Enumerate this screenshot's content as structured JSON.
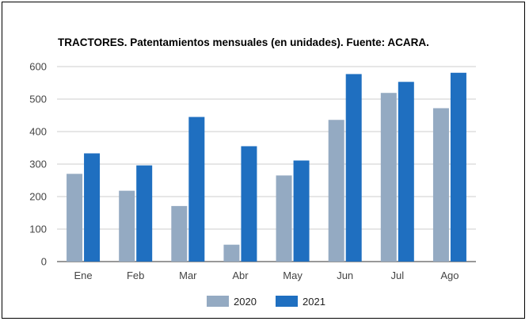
{
  "chart_data": {
    "type": "bar",
    "title": "TRACTORES. Patentamientos mensuales (en unidades). Fuente: ACARA.",
    "categories": [
      "Ene",
      "Feb",
      "Mar",
      "Abr",
      "May",
      "Jun",
      "Jul",
      "Ago"
    ],
    "series": [
      {
        "name": "2020",
        "color": "#94aac2",
        "values": [
          270,
          218,
          171,
          52,
          265,
          436,
          519,
          472
        ]
      },
      {
        "name": "2021",
        "color": "#1f6fc0",
        "values": [
          333,
          296,
          445,
          355,
          311,
          577,
          553,
          581
        ]
      }
    ],
    "y_ticks": [
      "0",
      "100",
      "200",
      "300",
      "400",
      "500",
      "600"
    ],
    "ylim": [
      0,
      600
    ],
    "grid": true,
    "legend_position": "bottom"
  }
}
